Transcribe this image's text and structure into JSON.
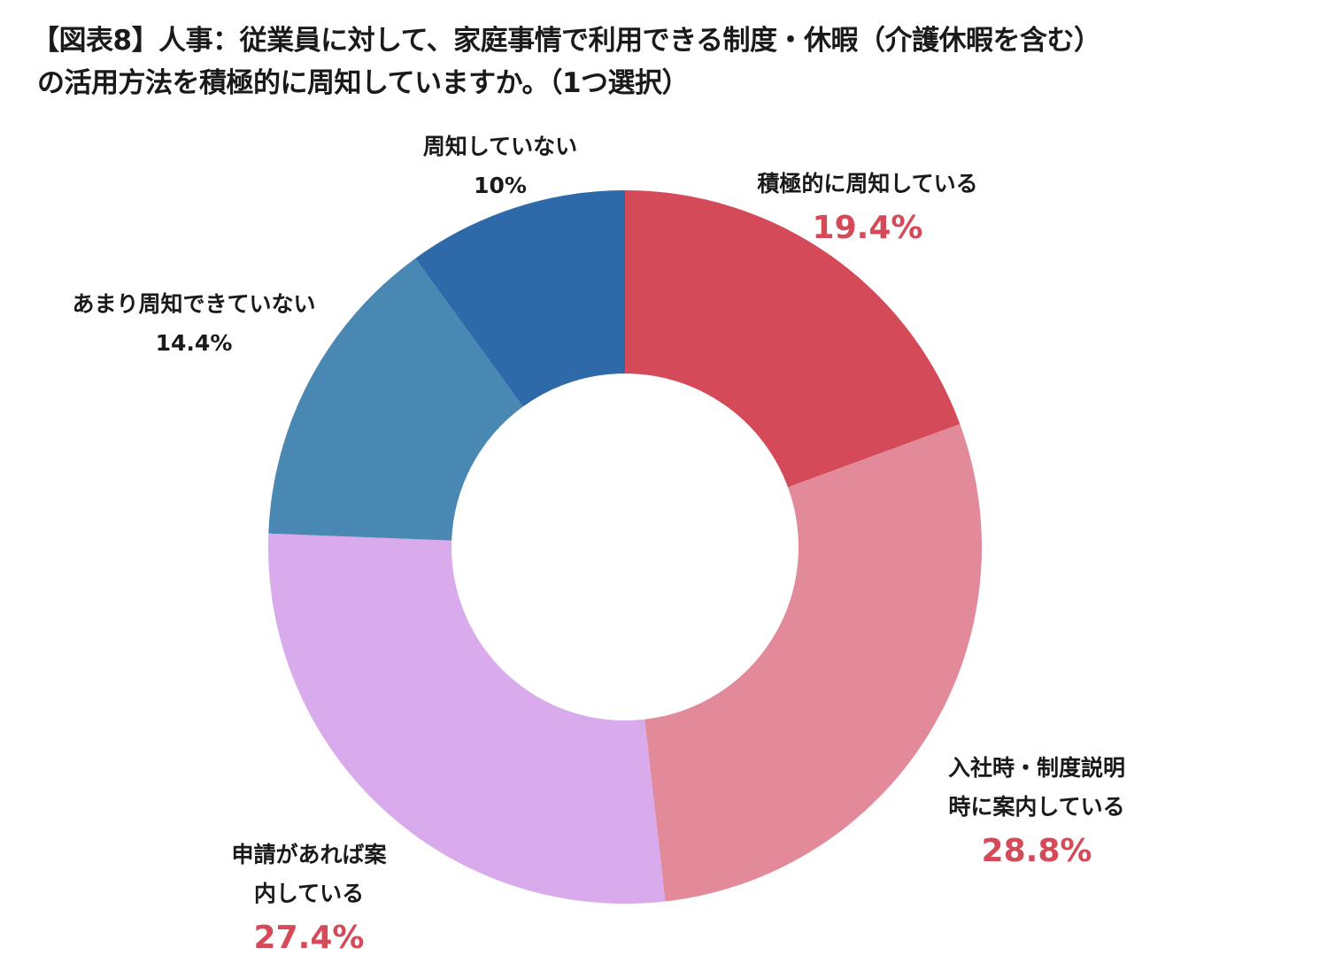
{
  "title": {
    "line1": "【図表8】人事：従業員に対して、家庭事情で利用できる制度・休暇（介護休暇を含む）",
    "line2": "の活用方法を積極的に周知していますか。（1つ選択）"
  },
  "chart_data": {
    "type": "pie",
    "donut": true,
    "title": "【図表8】人事：従業員に対して、家庭事情で利用できる制度・休暇（介護休暇を含む）の活用方法を積極的に周知していますか。（1つ選択）",
    "slices": [
      {
        "label": "積極的に周知している",
        "label_lines": [
          "積極的に周知している"
        ],
        "value": 19.4,
        "display": "19.4%",
        "color": "#d54a58",
        "highlight": true
      },
      {
        "label": "入社時・制度説明時に案内している",
        "label_lines": [
          "入社時・制度説明",
          "時に案内している"
        ],
        "value": 28.8,
        "display": "28.8%",
        "color": "#e38a9a",
        "highlight": true
      },
      {
        "label": "申請があれば案内している",
        "label_lines": [
          "申請があれば案",
          "内している"
        ],
        "value": 27.4,
        "display": "27.4%",
        "color": "#d9aaec",
        "highlight": true
      },
      {
        "label": "あまり周知できていない",
        "label_lines": [
          "あまり周知できていない"
        ],
        "value": 14.4,
        "display": "14.4%",
        "color": "#4a88b4",
        "highlight": false
      },
      {
        "label": "周知していない",
        "label_lines": [
          "周知していない"
        ],
        "value": 10,
        "display": "10%",
        "color": "#2e6aaa",
        "highlight": false
      }
    ]
  }
}
